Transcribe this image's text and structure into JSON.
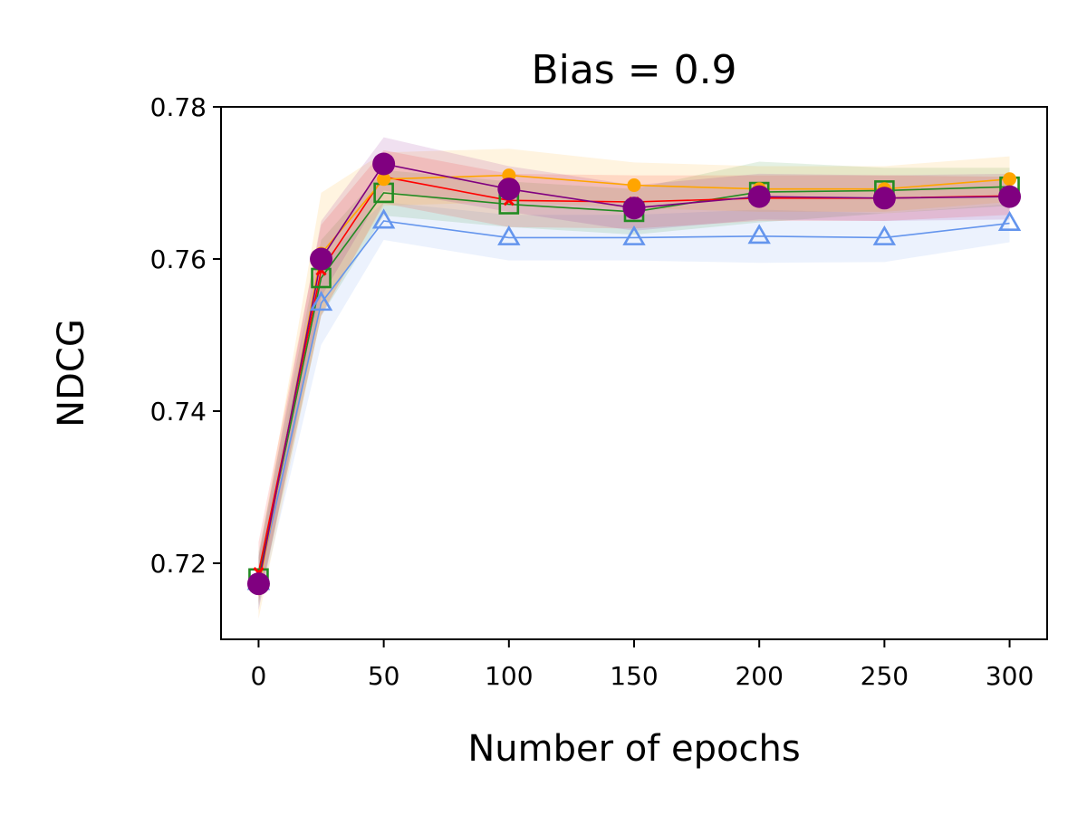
{
  "chart_data": {
    "type": "line",
    "title": "Bias = 0.9",
    "xlabel": "Number of epochs",
    "ylabel": "NDCG",
    "xlim": [
      -15,
      315
    ],
    "ylim": [
      0.71,
      0.78
    ],
    "xticks": [
      0,
      50,
      100,
      150,
      200,
      250,
      300
    ],
    "xtick_labels": [
      "0",
      "50",
      "100",
      "150",
      "200",
      "250",
      "300"
    ],
    "yticks": [
      0.72,
      0.74,
      0.76,
      0.78
    ],
    "ytick_labels": [
      "0.72",
      "0.74",
      "0.76",
      "0.78"
    ],
    "grid": false,
    "legend": "none",
    "x": [
      0,
      25,
      50,
      100,
      150,
      200,
      250,
      300
    ],
    "series": [
      {
        "color": "#6495ED",
        "marker": "triangle-open",
        "values": [
          0.7175,
          0.7542,
          0.765,
          0.7628,
          0.7628,
          0.763,
          0.7628,
          0.7647
        ],
        "band": [
          0.0035,
          0.0055,
          0.0025,
          0.003,
          0.003,
          0.0035,
          0.0032,
          0.0025
        ]
      },
      {
        "color": "#228B22",
        "marker": "square-open",
        "values": [
          0.718,
          0.7575,
          0.7687,
          0.7672,
          0.7662,
          0.7688,
          0.769,
          0.7695
        ],
        "band": [
          0.0035,
          0.005,
          0.003,
          0.003,
          0.003,
          0.004,
          0.003,
          0.0025
        ]
      },
      {
        "color": "#FF0000",
        "marker": "x",
        "values": [
          0.7188,
          0.7585,
          0.7708,
          0.7677,
          0.7675,
          0.768,
          0.768,
          0.7683
        ],
        "band": [
          0.004,
          0.006,
          0.0035,
          0.0035,
          0.0035,
          0.003,
          0.003,
          0.0025
        ]
      },
      {
        "color": "#FFA500",
        "marker": "dot-small",
        "values": [
          0.7167,
          0.7607,
          0.7705,
          0.771,
          0.7697,
          0.7692,
          0.7692,
          0.7705
        ],
        "band": [
          0.004,
          0.008,
          0.0035,
          0.0035,
          0.003,
          0.003,
          0.003,
          0.003
        ]
      },
      {
        "color": "#800080",
        "marker": "dot-large",
        "values": [
          0.7173,
          0.76,
          0.7725,
          0.7692,
          0.7667,
          0.7682,
          0.768,
          0.7682
        ],
        "band": [
          0.0035,
          0.005,
          0.0035,
          0.003,
          0.003,
          0.003,
          0.003,
          0.003
        ]
      }
    ]
  }
}
